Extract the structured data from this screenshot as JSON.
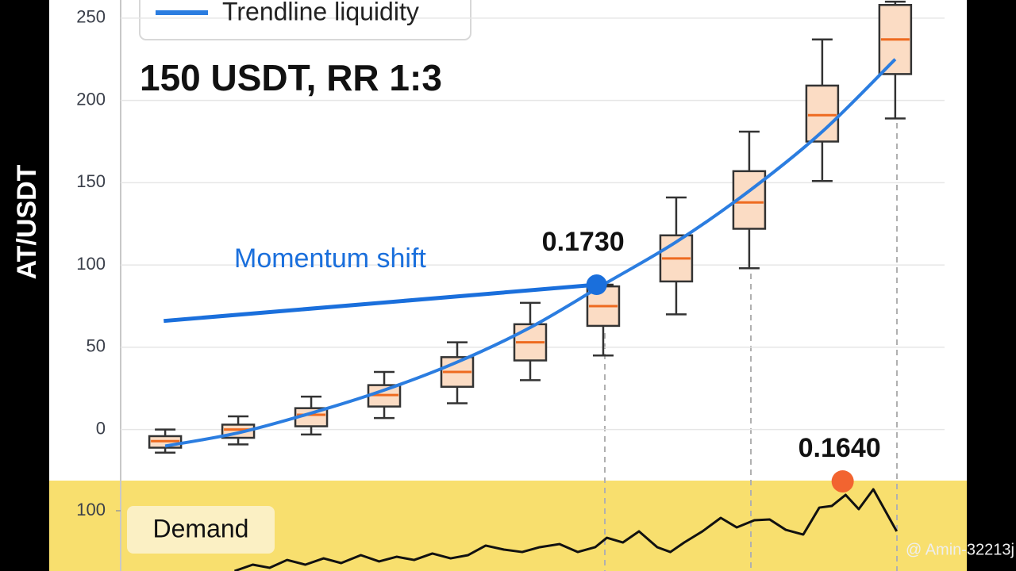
{
  "watermark": "@ Amin-32213j",
  "chart_data": [
    {
      "type": "box",
      "title": "150 USDT, RR 1:3",
      "y_label": "AT/USDT",
      "x": [
        0,
        1,
        2,
        3,
        4,
        5,
        6,
        7,
        8,
        9,
        10
      ],
      "xlim": [
        -0.61,
        10.98
      ],
      "ylim": [
        -31,
        261
      ],
      "yticks": [
        0,
        50,
        100,
        150,
        200,
        250
      ],
      "grid": true,
      "boxes": {
        "low": [
          -14,
          -9,
          -3,
          7,
          16,
          30,
          45,
          70,
          98,
          151,
          189
        ],
        "q1": [
          -11,
          -5,
          2,
          14,
          26,
          42,
          63,
          90,
          122,
          175,
          216
        ],
        "median": [
          -7,
          0,
          9,
          21,
          35,
          53,
          75,
          104,
          138,
          191,
          237
        ],
        "q3": [
          -4,
          3,
          13,
          27,
          44,
          64,
          87,
          118,
          157,
          209,
          258
        ],
        "high": [
          0,
          8,
          20,
          35,
          53,
          77,
          88,
          141,
          181,
          237,
          260
        ],
        "color": "#fbdcc4",
        "median_color": "#ee6a1f"
      },
      "series": [
        {
          "name": "Trendline liquidity",
          "color": "#2b7de0",
          "values": [
            -10,
            -2,
            10,
            24,
            41,
            62,
            88,
            114,
            145,
            181,
            225
          ]
        }
      ],
      "legend": "top-left",
      "momentum": {
        "text": "Momentum shift",
        "color": "#1a6fdc",
        "x": [
          -0.02,
          5.91
        ],
        "y": [
          66,
          88
        ]
      },
      "point": {
        "text": "0.1730",
        "x": 5.91,
        "y": 88,
        "color": "#1a6fdc"
      }
    },
    {
      "type": "line",
      "label": "Demand",
      "background": "#f8df6e",
      "xlim": [
        -0.61,
        10.98
      ],
      "ylim": [
        40,
        130
      ],
      "yticks": [
        100
      ],
      "color": "#111111",
      "x": [
        0.95,
        1.2,
        1.43,
        1.67,
        1.92,
        2.17,
        2.41,
        2.68,
        2.93,
        3.17,
        3.41,
        3.66,
        3.91,
        4.15,
        4.39,
        4.64,
        4.89,
        5.13,
        5.4,
        5.65,
        5.89,
        6.05,
        6.27,
        6.49,
        6.74,
        6.92,
        7.11,
        7.36,
        7.61,
        7.83,
        8.07,
        8.28,
        8.5,
        8.74,
        8.96,
        9.13,
        9.32,
        9.5,
        9.7,
        10.02
      ],
      "values": [
        40,
        46.3,
        43.2,
        51,
        46.3,
        52.6,
        47.9,
        55.8,
        49.5,
        54.2,
        51,
        57.4,
        52.6,
        55.8,
        65.3,
        61.3,
        58.9,
        63.7,
        66.8,
        58.9,
        63.7,
        73.1,
        68.4,
        79.5,
        63.7,
        58.9,
        68.4,
        79.5,
        92.9,
        83.4,
        90.5,
        91.3,
        81,
        76.3,
        103.1,
        104.7,
        115.8,
        101.6,
        121.3,
        79.5
      ],
      "point": {
        "text": "0.1640",
        "x": 9.28,
        "y": 129.2,
        "color": "#f26430"
      }
    }
  ]
}
